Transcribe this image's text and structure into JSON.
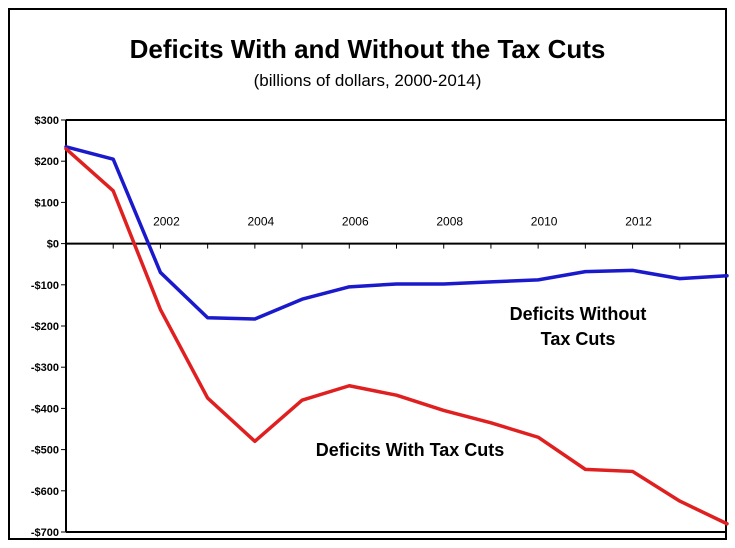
{
  "chart_data": {
    "type": "line",
    "title": "Deficits With and Without the Tax Cuts",
    "subtitle": "(billions of dollars, 2000-2014)",
    "xlabel": "",
    "ylabel": "",
    "xlim": [
      2000,
      2014
    ],
    "ylim": [
      -700,
      300
    ],
    "y_ticks": [
      300,
      200,
      100,
      0,
      -100,
      -200,
      -300,
      -400,
      -500,
      -600,
      -700
    ],
    "y_tick_labels": [
      "$300",
      "$200",
      "$100",
      "$0",
      "-$100",
      "-$200",
      "-$300",
      "-$400",
      "-$500",
      "-$600",
      "-$700"
    ],
    "x_ticks": [
      2002,
      2004,
      2006,
      2008,
      2010,
      2012
    ],
    "x_tick_labels": [
      "2002",
      "2004",
      "2006",
      "2008",
      "2010",
      "2012"
    ],
    "grid": false,
    "series": [
      {
        "name": "Deficits Without Tax Cuts",
        "color": "#1a1acc",
        "x": [
          2000,
          2001,
          2002,
          2003,
          2004,
          2005,
          2006,
          2007,
          2008,
          2009,
          2010,
          2011,
          2012,
          2013,
          2014
        ],
        "values": [
          235,
          205,
          -70,
          -180,
          -183,
          -135,
          -105,
          -98,
          -98,
          -93,
          -88,
          -68,
          -65,
          -85,
          -78
        ]
      },
      {
        "name": "Deficits With Tax Cuts",
        "color": "#e02020",
        "x": [
          2000,
          2001,
          2002,
          2003,
          2004,
          2005,
          2006,
          2007,
          2008,
          2009,
          2010,
          2011,
          2012,
          2013,
          2014
        ],
        "values": [
          230,
          128,
          -160,
          -375,
          -480,
          -380,
          -345,
          -368,
          -405,
          -435,
          -470,
          -548,
          -553,
          -625,
          -680
        ]
      }
    ],
    "annotations": [
      {
        "lines": [
          "Deficits Without",
          "Tax Cuts"
        ],
        "series": "Deficits Without Tax Cuts"
      },
      {
        "lines": [
          "Deficits With Tax Cuts"
        ],
        "series": "Deficits With Tax Cuts"
      }
    ]
  }
}
